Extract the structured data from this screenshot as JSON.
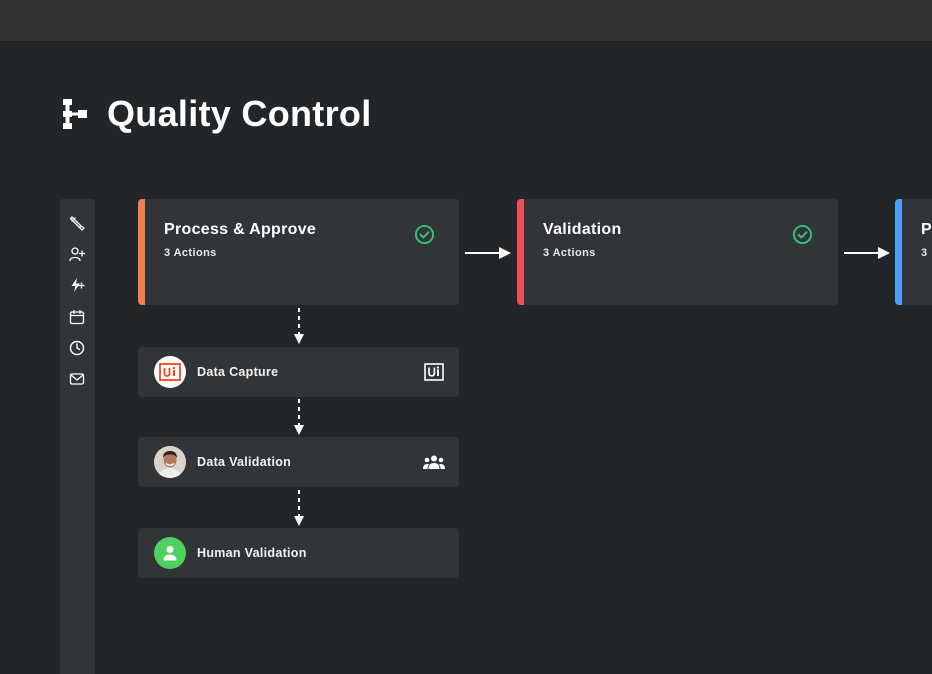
{
  "page": {
    "title": "Quality Control",
    "title_icon": "workflow-icon"
  },
  "toolbar": {
    "tools": [
      {
        "name": "brush-icon"
      },
      {
        "name": "add-user-icon"
      },
      {
        "name": "lightning-add-icon"
      },
      {
        "name": "calendar-icon"
      },
      {
        "name": "clock-icon"
      },
      {
        "name": "mail-icon"
      }
    ]
  },
  "stages": [
    {
      "title": "Process & Approve",
      "subtitle": "3 Actions",
      "accent": "#f07f4e",
      "status": "complete"
    },
    {
      "title": "Validation",
      "subtitle": "3 Actions",
      "accent": "#ee4f56",
      "status": "complete"
    },
    {
      "title": "P",
      "subtitle": "3",
      "accent": "#4fa0f7",
      "status": ""
    }
  ],
  "actions": [
    {
      "label": "Data Capture",
      "avatar": "uipath-logo",
      "type_icon": "uipath-robot-icon"
    },
    {
      "label": "Data Validation",
      "avatar": "person-photo",
      "type_icon": "team-icon"
    },
    {
      "label": "Human Validation",
      "avatar": "user-icon",
      "type_icon": ""
    }
  ],
  "colors": {
    "background": "#232629",
    "card": "#323538",
    "check": "#2fc67a",
    "human_avatar": "#4fd15f",
    "uipath_orange": "#fa4616"
  }
}
